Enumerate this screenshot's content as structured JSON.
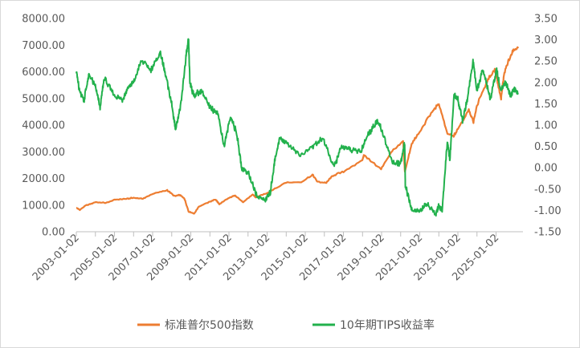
{
  "chart_data": {
    "type": "line",
    "title": "",
    "xlabel": "",
    "ylabel": "",
    "y2label": "",
    "grid": false,
    "legend_position": "bottom",
    "x_range": [
      "2003-01-02",
      "2026-06-01"
    ],
    "x_tick_labels": [
      "2003-01-02",
      "2005-01-02",
      "2007-01-02",
      "2009-01-02",
      "2011-01-02",
      "2013-01-02",
      "2015-01-02",
      "2017-01-02",
      "2019-01-02",
      "2021-01-02",
      "2023-01-02",
      "2025-01-02"
    ],
    "y_left": {
      "ylim": [
        0,
        8000
      ],
      "tick_labels": [
        "0.00",
        "1000.00",
        "2000.00",
        "3000.00",
        "4000.00",
        "5000.00",
        "6000.00",
        "7000.00",
        "8000.00"
      ]
    },
    "y_right": {
      "ylim": [
        -1.5,
        3.5
      ],
      "tick_labels": [
        "-1.50",
        "-1.00",
        "-0.50",
        "0.00",
        "0.50",
        "1.00",
        "1.50",
        "2.00",
        "2.50",
        "3.00",
        "3.50"
      ]
    },
    "series": [
      {
        "name": "标准普尔500指数",
        "axis": "left",
        "color": "#ed7d31",
        "points": [
          [
            "2003-01-02",
            900
          ],
          [
            "2003-03-10",
            820
          ],
          [
            "2003-07-01",
            980
          ],
          [
            "2004-01-02",
            1110
          ],
          [
            "2004-08-01",
            1080
          ],
          [
            "2005-01-02",
            1200
          ],
          [
            "2005-08-01",
            1230
          ],
          [
            "2006-01-02",
            1270
          ],
          [
            "2006-07-01",
            1240
          ],
          [
            "2007-01-02",
            1420
          ],
          [
            "2007-10-09",
            1560
          ],
          [
            "2008-03-01",
            1330
          ],
          [
            "2008-06-01",
            1380
          ],
          [
            "2008-09-01",
            1250
          ],
          [
            "2008-11-20",
            760
          ],
          [
            "2009-03-09",
            680
          ],
          [
            "2009-06-01",
            940
          ],
          [
            "2010-01-02",
            1130
          ],
          [
            "2010-04-23",
            1210
          ],
          [
            "2010-07-01",
            1030
          ],
          [
            "2011-01-02",
            1270
          ],
          [
            "2011-05-01",
            1360
          ],
          [
            "2011-10-03",
            1100
          ],
          [
            "2012-04-01",
            1400
          ],
          [
            "2012-06-01",
            1280
          ],
          [
            "2013-01-02",
            1460
          ],
          [
            "2013-12-31",
            1850
          ],
          [
            "2014-10-15",
            1860
          ],
          [
            "2015-05-21",
            2130
          ],
          [
            "2015-08-25",
            1870
          ],
          [
            "2016-02-11",
            1830
          ],
          [
            "2016-06-01",
            2090
          ],
          [
            "2017-01-02",
            2260
          ],
          [
            "2017-12-31",
            2680
          ],
          [
            "2018-01-26",
            2870
          ],
          [
            "2018-12-24",
            2350
          ],
          [
            "2019-07-01",
            2980
          ],
          [
            "2020-02-19",
            3380
          ],
          [
            "2020-03-23",
            2240
          ],
          [
            "2020-08-01",
            3300
          ],
          [
            "2021-01-02",
            3750
          ],
          [
            "2021-09-01",
            4520
          ],
          [
            "2022-01-03",
            4800
          ],
          [
            "2022-06-16",
            3670
          ],
          [
            "2022-10-12",
            3580
          ],
          [
            "2023-01-02",
            3850
          ],
          [
            "2023-07-31",
            4590
          ],
          [
            "2023-10-27",
            4120
          ],
          [
            "2024-01-02",
            4740
          ],
          [
            "2024-07-16",
            5670
          ],
          [
            "2024-12-06",
            6090
          ],
          [
            "2025-01-02",
            5870
          ],
          [
            "2025-04-08",
            4980
          ],
          [
            "2025-06-01",
            5900
          ],
          [
            "2025-09-01",
            6450
          ],
          [
            "2025-12-01",
            6800
          ],
          [
            "2026-03-01",
            6880
          ]
        ]
      },
      {
        "name": "10年期TIPS收益率",
        "axis": "right",
        "color": "#22b14c",
        "points": [
          [
            "2003-01-02",
            2.3
          ],
          [
            "2003-03-01",
            1.8
          ],
          [
            "2003-06-01",
            1.6
          ],
          [
            "2003-09-01",
            2.2
          ],
          [
            "2004-01-02",
            1.9
          ],
          [
            "2004-04-01",
            1.4
          ],
          [
            "2004-06-15",
            2.1
          ],
          [
            "2005-01-02",
            1.7
          ],
          [
            "2005-06-01",
            1.6
          ],
          [
            "2005-10-01",
            1.9
          ],
          [
            "2006-01-02",
            2.0
          ],
          [
            "2006-06-01",
            2.5
          ],
          [
            "2006-12-01",
            2.3
          ],
          [
            "2007-06-01",
            2.7
          ],
          [
            "2007-09-01",
            2.2
          ],
          [
            "2008-01-02",
            1.5
          ],
          [
            "2008-03-15",
            0.9
          ],
          [
            "2008-07-01",
            1.5
          ],
          [
            "2008-10-01",
            2.6
          ],
          [
            "2008-11-20",
            3.0
          ],
          [
            "2008-12-15",
            2.0
          ],
          [
            "2009-03-01",
            1.7
          ],
          [
            "2009-08-01",
            1.8
          ],
          [
            "2010-01-02",
            1.4
          ],
          [
            "2010-06-01",
            1.3
          ],
          [
            "2010-10-01",
            0.5
          ],
          [
            "2011-02-01",
            1.2
          ],
          [
            "2011-06-01",
            0.8
          ],
          [
            "2011-09-01",
            0.0
          ],
          [
            "2012-01-02",
            -0.1
          ],
          [
            "2012-07-01",
            -0.7
          ],
          [
            "2012-12-01",
            -0.75
          ],
          [
            "2013-03-01",
            -0.6
          ],
          [
            "2013-06-01",
            0.2
          ],
          [
            "2013-09-01",
            0.7
          ],
          [
            "2014-01-02",
            0.6
          ],
          [
            "2014-10-01",
            0.3
          ],
          [
            "2015-06-01",
            0.5
          ],
          [
            "2015-12-01",
            0.7
          ],
          [
            "2016-07-01",
            0.0
          ],
          [
            "2016-12-01",
            0.5
          ],
          [
            "2017-06-01",
            0.4
          ],
          [
            "2017-12-01",
            0.4
          ],
          [
            "2018-05-01",
            0.8
          ],
          [
            "2018-10-01",
            1.1
          ],
          [
            "2019-01-02",
            0.9
          ],
          [
            "2019-08-01",
            0.1
          ],
          [
            "2020-01-02",
            0.1
          ],
          [
            "2020-03-20",
            0.6
          ],
          [
            "2020-04-01",
            -0.4
          ],
          [
            "2020-08-01",
            -1.0
          ],
          [
            "2021-01-02",
            -1.0
          ],
          [
            "2021-06-01",
            -0.85
          ],
          [
            "2021-11-01",
            -1.1
          ],
          [
            "2022-01-02",
            -0.9
          ],
          [
            "2022-03-07",
            -1.0
          ],
          [
            "2022-06-14",
            0.6
          ],
          [
            "2022-08-01",
            0.2
          ],
          [
            "2022-10-21",
            1.7
          ],
          [
            "2023-01-02",
            1.6
          ],
          [
            "2023-04-01",
            1.1
          ],
          [
            "2023-07-01",
            1.6
          ],
          [
            "2023-10-19",
            2.5
          ],
          [
            "2024-01-02",
            1.8
          ],
          [
            "2024-04-25",
            2.3
          ],
          [
            "2024-09-16",
            1.6
          ],
          [
            "2025-01-14",
            2.3
          ],
          [
            "2025-04-01",
            1.8
          ],
          [
            "2025-07-01",
            2.0
          ],
          [
            "2025-10-01",
            1.7
          ],
          [
            "2026-01-02",
            1.85
          ],
          [
            "2026-03-01",
            1.75
          ]
        ]
      }
    ]
  }
}
